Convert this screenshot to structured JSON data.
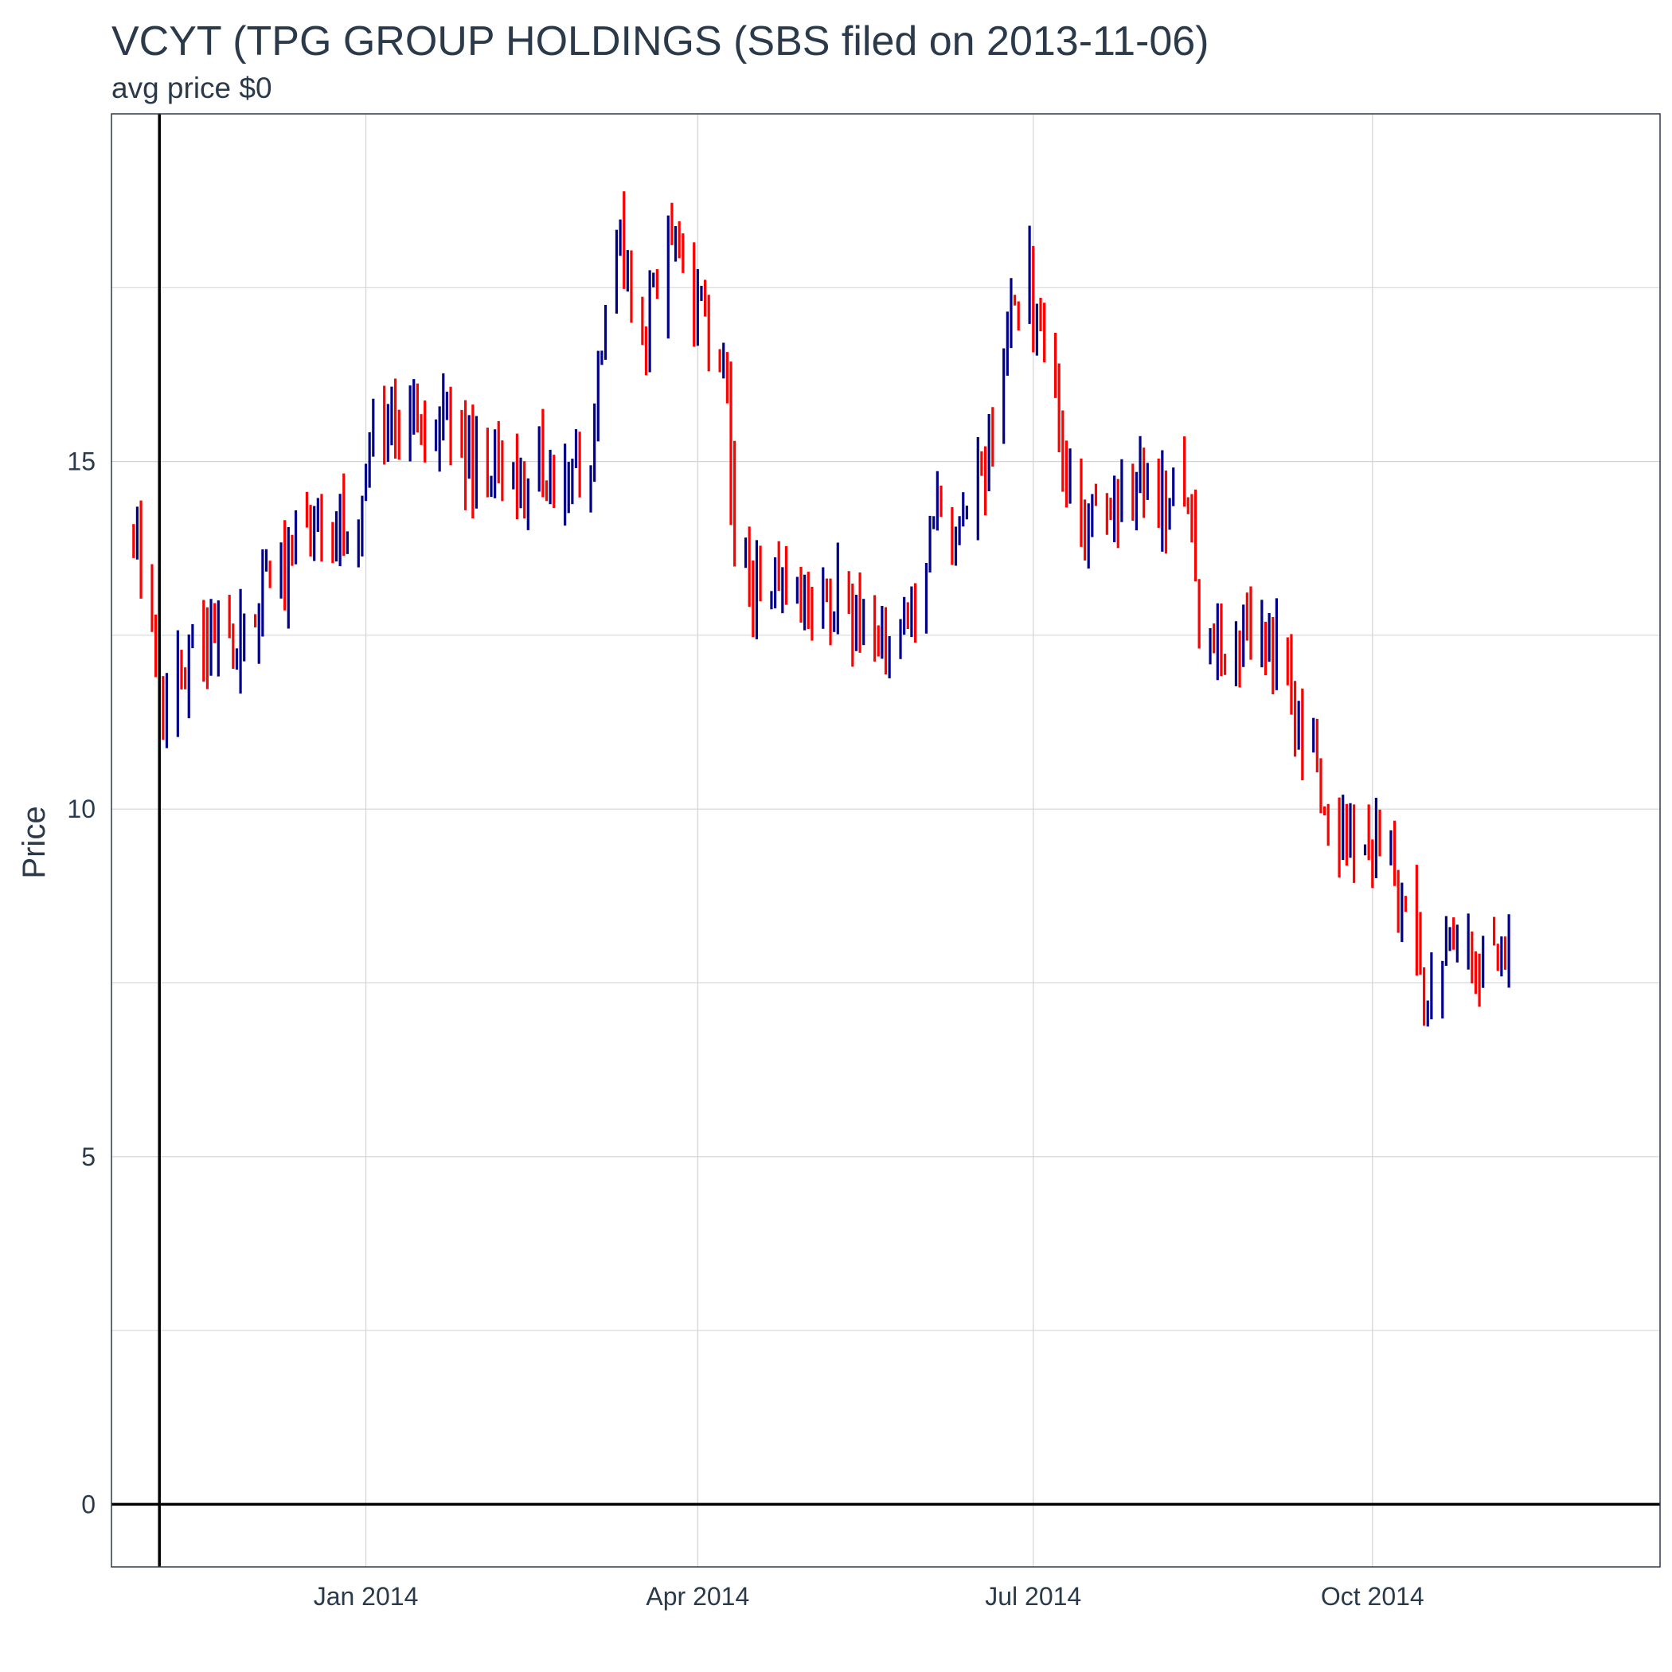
{
  "chart_data": {
    "type": "ohlc",
    "title": "VCYT (TPG GROUP HOLDINGS (SBS filed on 2013-11-06)",
    "subtitle": "avg price $0",
    "xlabel": "",
    "ylabel": "Price",
    "xlim": [
      "2013-10-24",
      "2014-12-18"
    ],
    "ylim": [
      -0.9,
      20.0
    ],
    "x_ticks": [
      {
        "date": "2014-01-01",
        "label": "Jan 2014"
      },
      {
        "date": "2014-04-01",
        "label": "Apr 2014"
      },
      {
        "date": "2014-07-01",
        "label": "Jul 2014"
      },
      {
        "date": "2014-10-01",
        "label": "Oct 2014"
      }
    ],
    "y_ticks": [
      {
        "value": 0,
        "label": "0"
      },
      {
        "value": 5,
        "label": "5"
      },
      {
        "value": 10,
        "label": "10"
      },
      {
        "value": 15,
        "label": "15"
      }
    ],
    "y_minor_gridlines": [
      2.5,
      7.5,
      12.5,
      17.5
    ],
    "reference_lines": {
      "vline_date": "2013-11-06",
      "hline_value": 0
    },
    "grid": true,
    "colors": {
      "up": "#00008b",
      "down": "#ff0000",
      "reference": "#000000",
      "grid": "#d3d3d3",
      "text": "#2b3a4a"
    },
    "anchors": [
      [
        "2013-10-30",
        13.9
      ],
      [
        "2013-11-05",
        12.3
      ],
      [
        "2013-11-08",
        11.1
      ],
      [
        "2013-11-12",
        12.0
      ],
      [
        "2013-11-20",
        12.5
      ],
      [
        "2013-11-25",
        12.4
      ],
      [
        "2013-12-02",
        12.9
      ],
      [
        "2013-12-06",
        13.3
      ],
      [
        "2013-12-10",
        13.4
      ],
      [
        "2013-12-14",
        14.0
      ],
      [
        "2013-12-20",
        14.1
      ],
      [
        "2013-12-27",
        14.1
      ],
      [
        "2013-12-31",
        14.5
      ],
      [
        "2014-01-03",
        15.6
      ],
      [
        "2014-01-08",
        15.3
      ],
      [
        "2014-01-13",
        15.8
      ],
      [
        "2014-01-17",
        15.5
      ],
      [
        "2014-01-23",
        16.0
      ],
      [
        "2014-01-28",
        15.0
      ],
      [
        "2014-02-03",
        14.9
      ],
      [
        "2014-02-10",
        14.8
      ],
      [
        "2014-02-17",
        15.0
      ],
      [
        "2014-02-24",
        14.6
      ],
      [
        "2014-03-03",
        15.3
      ],
      [
        "2014-03-06",
        16.9
      ],
      [
        "2014-03-11",
        18.0
      ],
      [
        "2014-03-18",
        17.0
      ],
      [
        "2014-03-24",
        18.6
      ],
      [
        "2014-03-28",
        17.5
      ],
      [
        "2014-04-03",
        16.9
      ],
      [
        "2014-04-08",
        16.4
      ],
      [
        "2014-04-11",
        14.0
      ],
      [
        "2014-04-17",
        13.2
      ],
      [
        "2014-04-24",
        13.3
      ],
      [
        "2014-05-01",
        12.6
      ],
      [
        "2014-05-08",
        13.0
      ],
      [
        "2014-05-16",
        12.6
      ],
      [
        "2014-05-23",
        12.6
      ],
      [
        "2014-05-30",
        12.9
      ],
      [
        "2014-06-04",
        14.4
      ],
      [
        "2014-06-10",
        14.2
      ],
      [
        "2014-06-16",
        14.9
      ],
      [
        "2014-06-20",
        15.3
      ],
      [
        "2014-06-25",
        17.3
      ],
      [
        "2014-06-30",
        17.5
      ],
      [
        "2014-07-03",
        16.5
      ],
      [
        "2014-07-09",
        15.3
      ],
      [
        "2014-07-15",
        14.0
      ],
      [
        "2014-07-21",
        14.3
      ],
      [
        "2014-07-28",
        14.8
      ],
      [
        "2014-08-04",
        14.4
      ],
      [
        "2014-08-11",
        14.7
      ],
      [
        "2014-08-15",
        12.9
      ],
      [
        "2014-08-22",
        12.4
      ],
      [
        "2014-08-29",
        12.6
      ],
      [
        "2014-09-05",
        12.5
      ],
      [
        "2014-09-10",
        11.5
      ],
      [
        "2014-09-16",
        10.5
      ],
      [
        "2014-09-22",
        9.8
      ],
      [
        "2014-09-29",
        9.5
      ],
      [
        "2014-10-03",
        9.6
      ],
      [
        "2014-10-08",
        8.8
      ],
      [
        "2014-10-15",
        7.3
      ],
      [
        "2014-10-21",
        7.7
      ],
      [
        "2014-10-28",
        7.9
      ],
      [
        "2014-11-03",
        8.0
      ],
      [
        "2014-11-07",
        8.2
      ]
    ]
  }
}
